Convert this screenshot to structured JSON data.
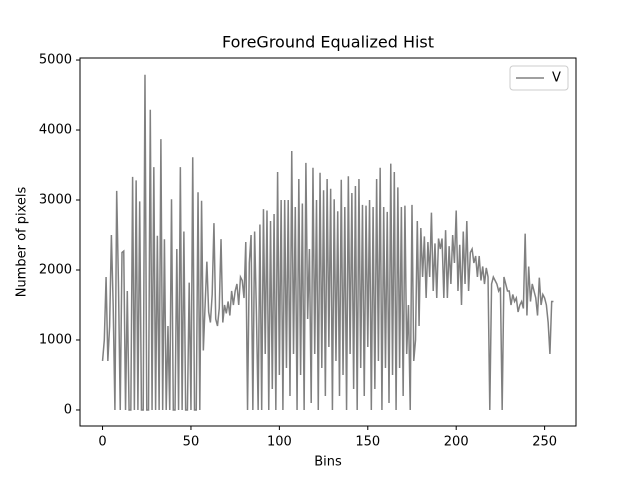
{
  "chart_data": {
    "type": "line",
    "title": "ForeGround Equalized Hist",
    "x_label": "Bins",
    "y_label": "Number of pixels",
    "x": [
      0,
      1,
      2,
      3,
      4,
      5,
      6,
      7,
      8,
      9,
      10,
      11,
      12,
      13,
      14,
      15,
      16,
      17,
      18,
      19,
      20,
      21,
      22,
      23,
      24,
      25,
      26,
      27,
      28,
      29,
      30,
      31,
      32,
      33,
      34,
      35,
      36,
      37,
      38,
      39,
      40,
      41,
      42,
      43,
      44,
      45,
      46,
      47,
      48,
      49,
      50,
      51,
      52,
      53,
      54,
      55,
      56,
      57,
      58,
      59,
      60,
      61,
      62,
      63,
      64,
      65,
      66,
      67,
      68,
      69,
      70,
      71,
      72,
      73,
      74,
      75,
      76,
      77,
      78,
      79,
      80,
      81,
      82,
      83,
      84,
      85,
      86,
      87,
      88,
      89,
      90,
      91,
      92,
      93,
      94,
      95,
      96,
      97,
      98,
      99,
      100,
      101,
      102,
      103,
      104,
      105,
      106,
      107,
      108,
      109,
      110,
      111,
      112,
      113,
      114,
      115,
      116,
      117,
      118,
      119,
      120,
      121,
      122,
      123,
      124,
      125,
      126,
      127,
      128,
      129,
      130,
      131,
      132,
      133,
      134,
      135,
      136,
      137,
      138,
      139,
      140,
      141,
      142,
      143,
      144,
      145,
      146,
      147,
      148,
      149,
      150,
      151,
      152,
      153,
      154,
      155,
      156,
      157,
      158,
      159,
      160,
      161,
      162,
      163,
      164,
      165,
      166,
      167,
      168,
      169,
      170,
      171,
      172,
      173,
      174,
      175,
      176,
      177,
      178,
      179,
      180,
      181,
      182,
      183,
      184,
      185,
      186,
      187,
      188,
      189,
      190,
      191,
      192,
      193,
      194,
      195,
      196,
      197,
      198,
      199,
      200,
      201,
      202,
      203,
      204,
      205,
      206,
      207,
      208,
      209,
      210,
      211,
      212,
      213,
      214,
      215,
      216,
      217,
      218,
      219,
      220,
      221,
      222,
      223,
      224,
      225,
      226,
      227,
      228,
      229,
      230,
      231,
      232,
      233,
      234,
      235,
      236,
      237,
      238,
      239,
      240,
      241,
      242,
      243,
      244,
      245,
      246,
      247,
      248,
      249,
      250,
      251,
      252,
      253,
      254,
      255
    ],
    "series": [
      {
        "name": "V",
        "color": "#808080",
        "values": [
          700,
          1000,
          1900,
          700,
          1200,
          2500,
          1500,
          0,
          3130,
          1800,
          0,
          2250,
          2270,
          0,
          1700,
          0,
          0,
          3330,
          0,
          3280,
          0,
          2980,
          0,
          0,
          4790,
          0,
          0,
          4290,
          0,
          3470,
          0,
          2490,
          0,
          3870,
          0,
          2440,
          0,
          1200,
          0,
          3010,
          0,
          0,
          2300,
          0,
          3470,
          0,
          2550,
          0,
          0,
          1820,
          0,
          3610,
          0,
          0,
          3110,
          0,
          2990,
          850,
          1500,
          2120,
          1400,
          1250,
          1650,
          2670,
          1300,
          1200,
          1450,
          2440,
          1250,
          1500,
          1380,
          1550,
          1350,
          1700,
          1500,
          1700,
          1800,
          1500,
          1900,
          1850,
          1600,
          2400,
          0,
          2100,
          2500,
          0,
          2550,
          1400,
          0,
          2650,
          0,
          2870,
          800,
          2850,
          0,
          2700,
          300,
          2800,
          0,
          3400,
          500,
          3000,
          0,
          3000,
          600,
          3000,
          200,
          3700,
          800,
          2900,
          0,
          3300,
          500,
          2950,
          0,
          3530,
          1300,
          2300,
          100,
          3460,
          800,
          3000,
          0,
          3390,
          600,
          3140,
          200,
          3300,
          900,
          3160,
          0,
          3010,
          700,
          2840,
          200,
          3290,
          500,
          2900,
          0,
          3340,
          800,
          3100,
          300,
          3200,
          0,
          3300,
          600,
          2930,
          200,
          2920,
          900,
          3000,
          0,
          2900,
          300,
          3300,
          700,
          3460,
          0,
          2900,
          600,
          2830,
          100,
          3520,
          500,
          3400,
          0,
          3180,
          600,
          2900,
          200,
          2920,
          800,
          1500,
          0,
          2930,
          700,
          1000,
          2700,
          1200,
          2600,
          1900,
          2480,
          1600,
          2400,
          1900,
          2820,
          1700,
          2380,
          1600,
          2450,
          2300,
          2450,
          1600,
          2570,
          1600,
          2340,
          1800,
          2500,
          2100,
          2850,
          1700,
          2360,
          1500,
          2550,
          1800,
          2700,
          1700,
          2250,
          2300,
          2100,
          2200,
          1900,
          2200,
          1850,
          2050,
          1800,
          2030,
          1900,
          0,
          1800,
          1900,
          1850,
          1800,
          1700,
          1750,
          0,
          1900,
          1800,
          1700,
          1700,
          1500,
          1650,
          1550,
          1600,
          1400,
          1500,
          1550,
          1450,
          2520,
          1350,
          2050,
          1550,
          1800,
          1700,
          1600,
          1350,
          1890,
          1500,
          1650,
          1600,
          1500,
          1250,
          800,
          1550,
          1550
        ]
      }
    ],
    "xlim": [
      -12.75,
      267.75
    ],
    "xticks": [
      0,
      50,
      100,
      150,
      200,
      250
    ],
    "ylim": [
      -229,
      5029
    ],
    "yticks": [
      0,
      1000,
      2000,
      3000,
      4000,
      5000
    ],
    "legend": "upper right"
  }
}
